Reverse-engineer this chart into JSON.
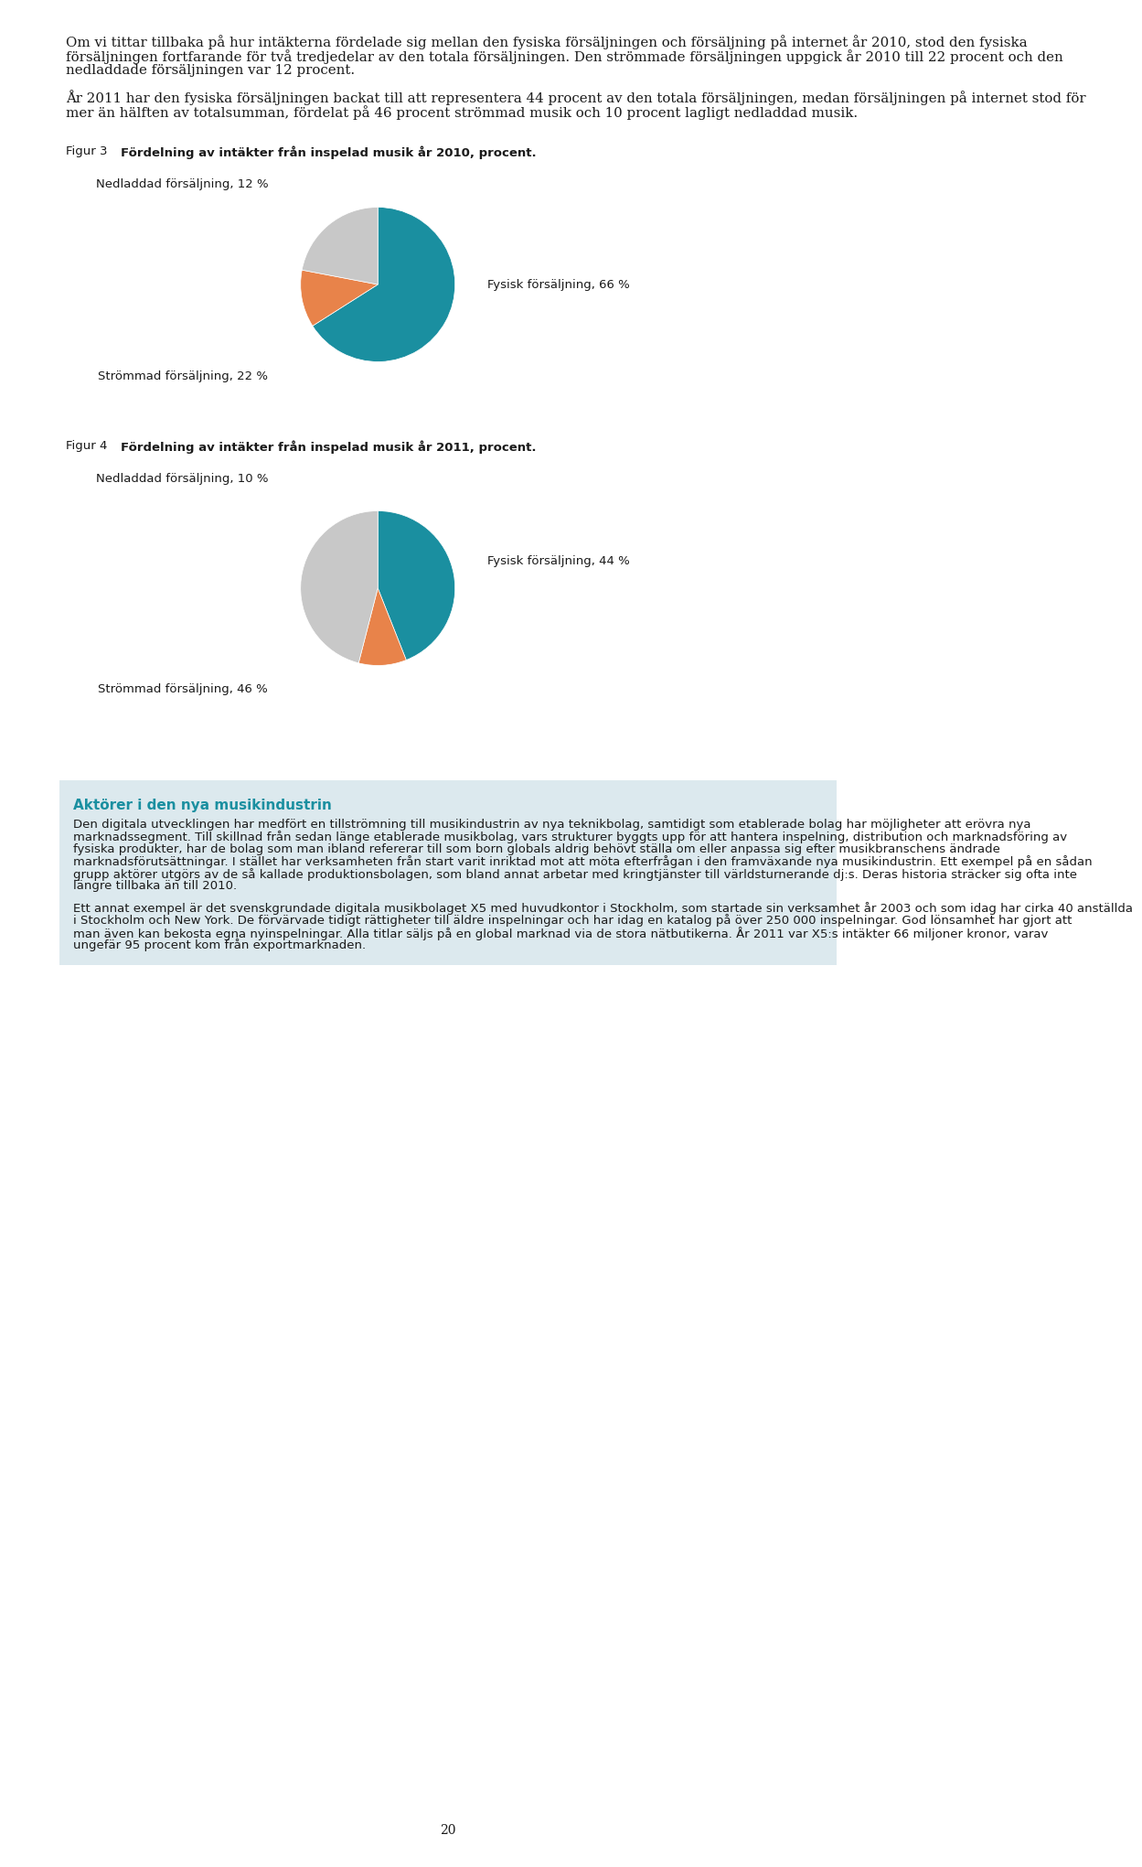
{
  "para1": "Om vi tittar tillbaka på hur intäkterna fördelade sig mellan den fysiska försäljningen och försäljning på internet år 2010, stod den fysiska försäljningen fortfarande för två tredjedelar av den totala försäljningen. Den strömmade försäljningen uppgick år 2010 till 22 procent och den nedladdade försäljningen var 12 procent.",
  "para2": "År 2011 har den fysiska försäljningen backat till att representera 44 procent av den totala försäljningen, medan försäljningen på internet stod för mer än hälften av totalsumman, fördelat på 46 procent strömmad musik och 10 procent lagligt nedladdad musik.",
  "fig3_label": "Figur 3",
  "fig3_title": "Fördelning av intäkter från inspelad musik år 2010, procent.",
  "fig3_slices": [
    66,
    22,
    12
  ],
  "fig3_colors": [
    "#1a8fa0",
    "#c8c8c8",
    "#e8834a"
  ],
  "fig3_labels": [
    "Fysisk försäljning, 66 %",
    "Strömmad försäljning, 22 %",
    "Nedladdad försäljning, 12 %"
  ],
  "fig4_label": "Figur 4",
  "fig4_title": "Fördelning av intäkter från inspelad musik år 2011, procent.",
  "fig4_slices": [
    44,
    46,
    10
  ],
  "fig4_colors": [
    "#1a8fa0",
    "#c8c8c8",
    "#e8834a"
  ],
  "fig4_labels": [
    "Fysisk försäljning, 44 %",
    "Strömmad försäljning, 46 %",
    "Nedladdad försäljning, 10 %"
  ],
  "box_title": "Aktörer i den nya musikindustrin",
  "box_title_color": "#1a8fa0",
  "box_bg_color": "#dce9ee",
  "box_para1": "Den digitala utvecklingen har medfört en tillströmning till musikindustrin av nya teknikbolag, samtidigt som etablerade bolag har möjligheter att erövra nya marknadssegment. Till skillnad från sedan länge etablerade musikbolag, vars strukturer byggts upp för att hantera inspelning, distribution och marknadsföring av fysiska produkter, har de bolag som man ibland refererar till som born globals aldrig behövt ställa om eller anpassa sig efter musikbranschens ändrade marknadsförutsättningar. I stället har verksamheten från start varit inriktad mot att möta efterfrågan i den framväxande nya musikindustrin. Ett exempel på en sådan grupp aktörer utgörs av de så kallade produktionsbolagen, som bland annat arbetar med kringtjänster till världsturnerande dj:s. Deras historia sträcker sig ofta inte längre tillbaka än till 2010.",
  "box_para2": "Ett annat exempel är det svenskgrundade digitala musikbolaget X5 med huvudkontor i Stockholm, som startade sin verksamhet år 2003 och som idag har cirka 40 anställda i Stockholm och New York. De förvärvade tidigt rättigheter till äldre inspelningar och har idag en katalog på över 250 000 inspelningar. God lönsamhet har gjort att man även kan bekosta egna nyinspelningar. Alla titlar säljs på en global marknad via de stora nätbutikerna. År 2011 var X5:s intäkter 66 miljoner kronor, varav ungefär 95 procent kom från exportmarknaden.",
  "page_number": "20",
  "background_color": "#ffffff",
  "text_color": "#1a1a1a"
}
